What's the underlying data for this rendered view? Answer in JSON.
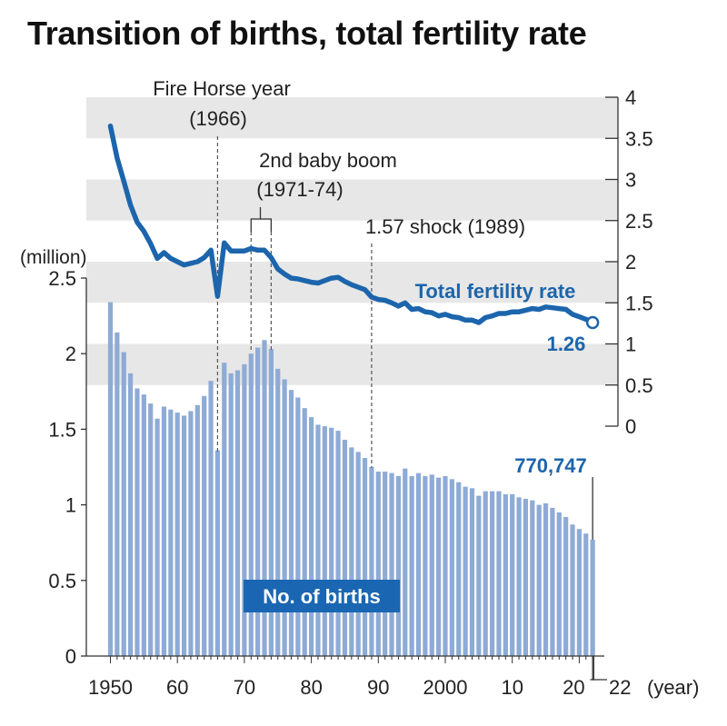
{
  "title": "Transition of births, total fertility rate",
  "chart_data": {
    "type": "bar+line",
    "title": "Transition of births, total fertility rate",
    "years": [
      1950,
      1951,
      1952,
      1953,
      1954,
      1955,
      1956,
      1957,
      1958,
      1959,
      1960,
      1961,
      1962,
      1963,
      1964,
      1965,
      1966,
      1967,
      1968,
      1969,
      1970,
      1971,
      1972,
      1973,
      1974,
      1975,
      1976,
      1977,
      1978,
      1979,
      1980,
      1981,
      1982,
      1983,
      1984,
      1985,
      1986,
      1987,
      1988,
      1989,
      1990,
      1991,
      1992,
      1993,
      1994,
      1995,
      1996,
      1997,
      1998,
      1999,
      2000,
      2001,
      2002,
      2003,
      2004,
      2005,
      2006,
      2007,
      2008,
      2009,
      2010,
      2011,
      2012,
      2013,
      2014,
      2015,
      2016,
      2017,
      2018,
      2019,
      2020,
      2021,
      2022
    ],
    "births": {
      "name": "No. of births",
      "unit": "million",
      "values": [
        2.34,
        2.14,
        2.01,
        1.87,
        1.77,
        1.73,
        1.67,
        1.57,
        1.65,
        1.63,
        1.61,
        1.59,
        1.62,
        1.66,
        1.72,
        1.82,
        1.36,
        1.94,
        1.87,
        1.89,
        1.93,
        2.0,
        2.04,
        2.09,
        2.03,
        1.9,
        1.83,
        1.76,
        1.71,
        1.64,
        1.58,
        1.53,
        1.52,
        1.51,
        1.49,
        1.43,
        1.38,
        1.35,
        1.31,
        1.25,
        1.22,
        1.22,
        1.21,
        1.19,
        1.24,
        1.19,
        1.21,
        1.19,
        1.2,
        1.18,
        1.19,
        1.17,
        1.15,
        1.12,
        1.11,
        1.06,
        1.09,
        1.09,
        1.09,
        1.07,
        1.07,
        1.05,
        1.04,
        1.03,
        1.0,
        1.01,
        0.98,
        0.95,
        0.92,
        0.87,
        0.84,
        0.81,
        0.77
      ],
      "ylim": [
        0,
        2.5
      ],
      "yticks": [
        "0",
        "0.5",
        "1",
        "1.5",
        "2",
        "2.5"
      ],
      "ylabel": "(million)"
    },
    "fertility": {
      "name": "Total fertility rate",
      "values": [
        3.65,
        3.26,
        2.98,
        2.69,
        2.48,
        2.37,
        2.22,
        2.04,
        2.11,
        2.04,
        2.0,
        1.96,
        1.98,
        2.0,
        2.05,
        2.14,
        1.58,
        2.23,
        2.13,
        2.13,
        2.13,
        2.16,
        2.14,
        2.14,
        2.05,
        1.91,
        1.85,
        1.8,
        1.79,
        1.77,
        1.75,
        1.74,
        1.77,
        1.8,
        1.81,
        1.76,
        1.72,
        1.69,
        1.66,
        1.57,
        1.54,
        1.53,
        1.5,
        1.46,
        1.5,
        1.42,
        1.43,
        1.39,
        1.38,
        1.34,
        1.36,
        1.33,
        1.32,
        1.29,
        1.29,
        1.26,
        1.32,
        1.34,
        1.37,
        1.37,
        1.39,
        1.39,
        1.41,
        1.43,
        1.42,
        1.45,
        1.44,
        1.43,
        1.42,
        1.36,
        1.33,
        1.3,
        1.26
      ],
      "ylim": [
        0,
        4
      ],
      "yticks": [
        "0",
        "0.5",
        "1",
        "1.5",
        "2",
        "2.5",
        "3",
        "3.5",
        "4"
      ]
    },
    "xticks": [
      "1950",
      "60",
      "70",
      "80",
      "90",
      "2000",
      "10",
      "20",
      "22"
    ],
    "xlabel": "(year)",
    "annotations": {
      "fire_horse_line1": "Fire Horse year",
      "fire_horse_line2": "(1966)",
      "baby_boom_line1": "2nd baby boom",
      "baby_boom_line2": "(1971-74)",
      "shock": "1.57 shock (1989)",
      "last_births": "770,747",
      "last_tfr": "1.26"
    },
    "colors": {
      "bar": "#8eabd6",
      "line": "#1c65ac",
      "band": "#e7e7e7",
      "label_bg": "#1a66b2"
    }
  }
}
